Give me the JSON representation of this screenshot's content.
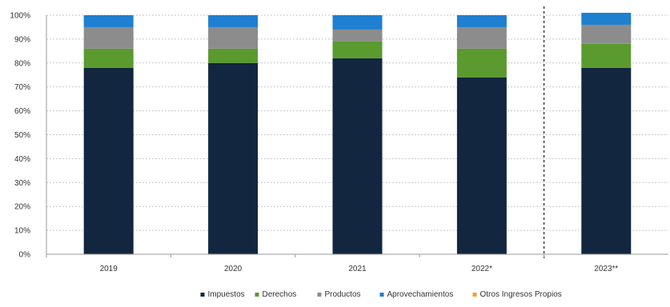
{
  "chart_data": {
    "type": "bar",
    "stacked": true,
    "categories": [
      "2019",
      "2020",
      "2021",
      "2022*",
      "2023**"
    ],
    "series": [
      {
        "name": "Impuestos",
        "color": "#12263f",
        "values": [
          78,
          80,
          82,
          74,
          78
        ]
      },
      {
        "name": "Derechos",
        "color": "#5a9a2e",
        "values": [
          8,
          6,
          7,
          12,
          10
        ]
      },
      {
        "name": "Productos",
        "color": "#8c8c8c",
        "values": [
          9,
          9,
          5,
          9,
          8
        ]
      },
      {
        "name": "Aprovechamientos",
        "color": "#1f7fd0",
        "values": [
          5,
          5,
          6,
          5,
          5
        ]
      },
      {
        "name": "Otros Ingresos Propios",
        "color": "#f0a030",
        "values": [
          0,
          0,
          0,
          0,
          0
        ]
      }
    ],
    "y_ticks": [
      "0%",
      "10%",
      "20%",
      "30%",
      "40%",
      "50%",
      "60%",
      "70%",
      "80%",
      "90%",
      "100%"
    ],
    "ylim": [
      0,
      100
    ],
    "grid": true,
    "legend_position": "bottom",
    "separator_between": [
      "2022*",
      "2023**"
    ]
  }
}
